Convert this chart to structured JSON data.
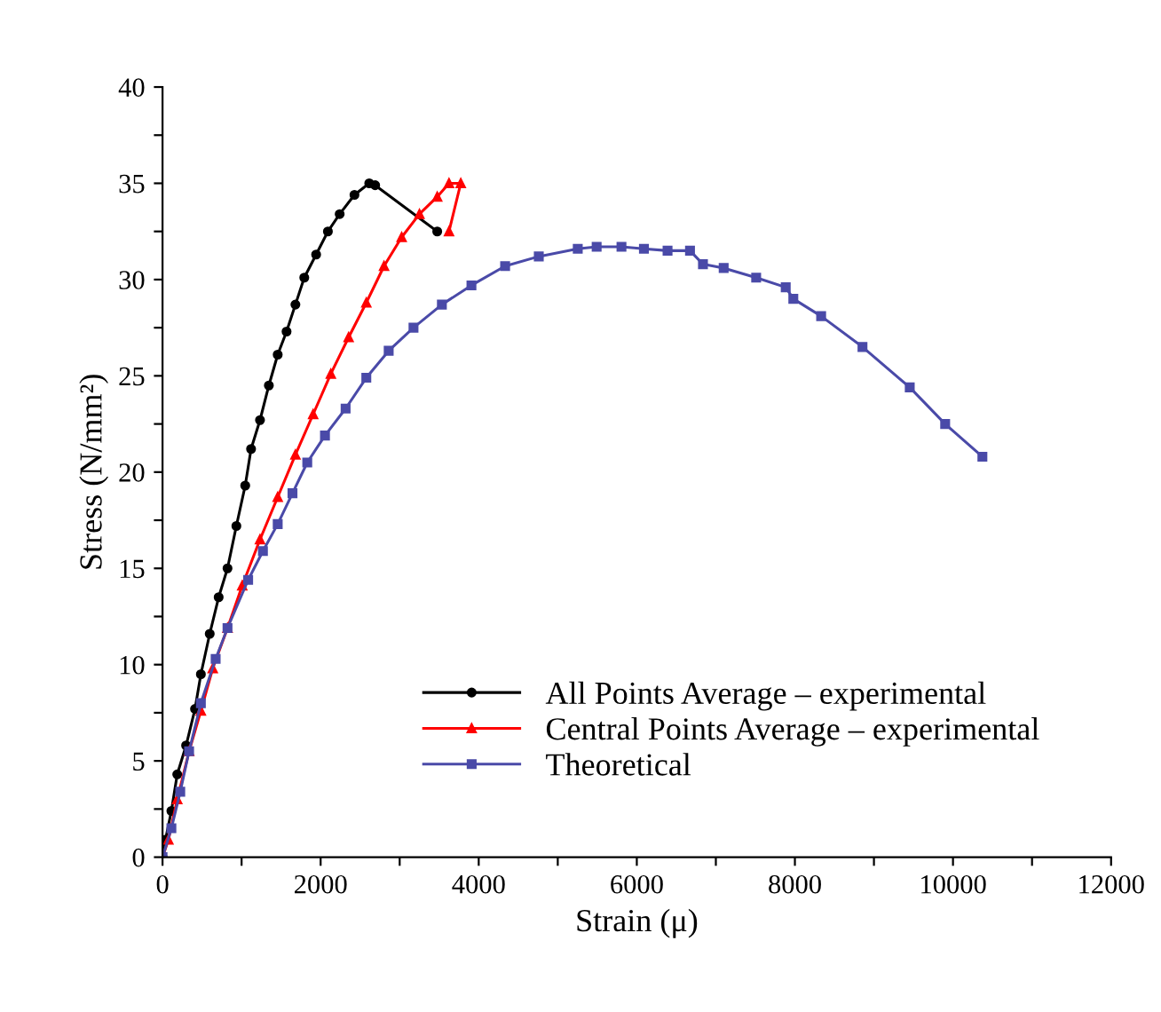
{
  "chart_data": {
    "type": "line",
    "xlabel": "Strain (μ)",
    "ylabel": "Stress (N/mm²)",
    "xlim": [
      0,
      12000
    ],
    "ylim": [
      0,
      40
    ],
    "xticks": [
      0,
      {
        "value": 1000,
        "label": null
      },
      2000,
      {
        "value": 3000,
        "label": null
      },
      4000,
      {
        "value": 5000,
        "label": null
      },
      6000,
      {
        "value": 7000,
        "label": null
      },
      8000,
      {
        "value": 9000,
        "label": null
      },
      10000,
      {
        "value": 11000,
        "label": null
      },
      12000
    ],
    "yticks": [
      0,
      {
        "value": 2.5,
        "label": null
      },
      5,
      {
        "value": 7.5,
        "label": null
      },
      10,
      {
        "value": 12.5,
        "label": null
      },
      15,
      {
        "value": 17.5,
        "label": null
      },
      20,
      {
        "value": 22.5,
        "label": null
      },
      25,
      {
        "value": 27.5,
        "label": null
      },
      30,
      {
        "value": 32.5,
        "label": null
      },
      35,
      {
        "value": 37.5,
        "label": null
      },
      40
    ],
    "grid": false,
    "legend": "bottom",
    "line_style": "solid",
    "series": [
      {
        "name": "All Points Average – experimental",
        "color": "#000000",
        "marker": "circle",
        "x": [
          0,
          37,
          112,
          186,
          298,
          411,
          485,
          597,
          710,
          822,
          934,
          1046,
          1120,
          1233,
          1345,
          1457,
          1569,
          1681,
          1793,
          1943,
          2092,
          2241,
          2428,
          2615,
          2690,
          3475
        ],
        "values": [
          0,
          0.9,
          2.4,
          4.3,
          5.8,
          7.7,
          9.5,
          11.6,
          13.5,
          15.0,
          17.2,
          19.3,
          21.2,
          22.7,
          24.5,
          26.1,
          27.3,
          28.7,
          30.1,
          31.3,
          32.5,
          33.4,
          34.4,
          35.0,
          34.9,
          32.5
        ]
      },
      {
        "name": "Central Points Average – experimental",
        "color": "#ff0000",
        "marker": "triangle",
        "x": [
          0,
          74,
          186,
          336,
          485,
          635,
          822,
          1008,
          1233,
          1457,
          1681,
          1905,
          2129,
          2354,
          2578,
          2802,
          3025,
          3250,
          3475,
          3624,
          3773,
          3624
        ],
        "values": [
          0,
          0.9,
          3.0,
          5.5,
          7.6,
          9.8,
          11.9,
          14.1,
          16.5,
          18.7,
          20.9,
          23.0,
          25.1,
          27.0,
          28.8,
          30.7,
          32.2,
          33.4,
          34.3,
          35.0,
          35.0,
          32.5
        ]
      },
      {
        "name": "Theoretical",
        "color": "#4a4aa8",
        "marker": "square",
        "x": [
          0,
          112,
          224,
          336,
          485,
          672,
          822,
          1083,
          1270,
          1457,
          1644,
          1831,
          2055,
          2316,
          2578,
          2861,
          3175,
          3534,
          3908,
          4334,
          4760,
          5253,
          5492,
          5806,
          6090,
          6389,
          6673,
          6837,
          7099,
          7510,
          7884,
          7980,
          8332,
          8855,
          9453,
          9901,
          10372
        ],
        "values": [
          0,
          1.5,
          3.4,
          5.5,
          8.0,
          10.3,
          11.9,
          14.4,
          15.9,
          17.3,
          18.9,
          20.5,
          21.9,
          23.3,
          24.9,
          26.3,
          27.5,
          28.7,
          29.7,
          30.7,
          31.2,
          31.6,
          31.7,
          31.7,
          31.6,
          31.5,
          31.5,
          30.8,
          30.6,
          30.1,
          29.6,
          29.0,
          28.1,
          26.5,
          24.4,
          22.5,
          20.8
        ]
      }
    ]
  }
}
